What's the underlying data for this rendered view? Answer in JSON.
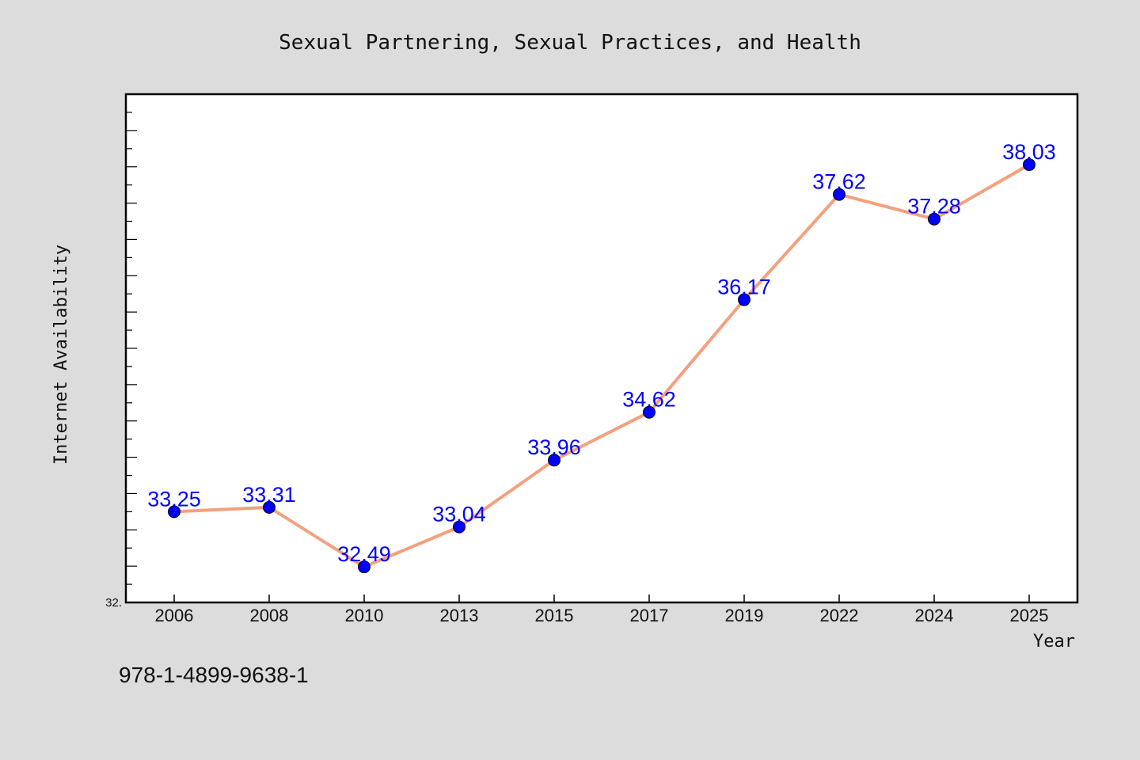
{
  "chart_data": {
    "type": "line",
    "title": "Sexual Partnering, Sexual Practices, and Health",
    "xlabel": "Year",
    "ylabel": "Internet Availability",
    "categories": [
      "2006",
      "2008",
      "2010",
      "2013",
      "2015",
      "2017",
      "2019",
      "2022",
      "2024",
      "2025"
    ],
    "series": [
      {
        "values": [
          33.25,
          33.31,
          32.49,
          33.04,
          33.96,
          34.62,
          36.17,
          37.62,
          37.28,
          38.03
        ]
      }
    ],
    "data_labels": [
      "33.25",
      "33.31",
      "32.49",
      "33.04",
      "33.96",
      "34.62",
      "36.17",
      "37.62",
      "37.28",
      "38.03"
    ],
    "y_tick_label": "32.",
    "ylim": [
      32.0,
      39.0
    ],
    "grid": false,
    "colors": {
      "line": "#f4a07e",
      "marker": "#0000ff",
      "label": "#0000ff",
      "background": "#dcdcdc",
      "plot_background": "#ffffff"
    }
  },
  "footer": {
    "isbn": "978-1-4899-9638-1"
  }
}
